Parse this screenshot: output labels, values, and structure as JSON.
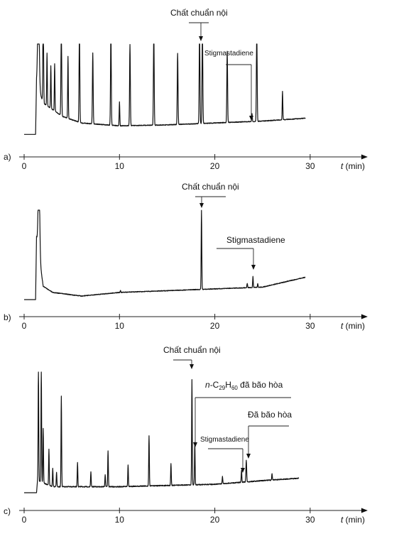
{
  "chart_data": [
    {
      "type": "line",
      "panel_label": "a)",
      "xlabel_italic": "t",
      "xlabel_unit": "(min)",
      "xlim": [
        0,
        35
      ],
      "x_ticks": [
        0,
        10,
        20,
        30
      ],
      "x_tick_labels": [
        "0",
        "10",
        "20",
        "30"
      ],
      "baseline": [
        [
          0,
          0.05
        ],
        [
          1.2,
          0.05
        ],
        [
          1.3,
          0.6
        ],
        [
          2,
          0.38
        ],
        [
          4,
          0.24
        ],
        [
          6,
          0.17
        ],
        [
          10,
          0.14
        ],
        [
          15,
          0.15
        ],
        [
          20,
          0.17
        ],
        [
          25,
          0.19
        ],
        [
          29.5,
          0.22
        ]
      ],
      "peaks": [
        {
          "t": 1.5,
          "h": 1.0,
          "w": 0.25
        },
        {
          "t": 2.0,
          "h": 1.0,
          "w": 0.12
        },
        {
          "t": 2.4,
          "h": 0.55,
          "w": 0.1
        },
        {
          "t": 2.8,
          "h": 0.45,
          "w": 0.1
        },
        {
          "t": 3.2,
          "h": 0.5,
          "w": 0.1
        },
        {
          "t": 3.9,
          "h": 1.0,
          "w": 0.12
        },
        {
          "t": 4.6,
          "h": 0.65,
          "w": 0.1
        },
        {
          "t": 5.8,
          "h": 1.0,
          "w": 0.12
        },
        {
          "t": 7.2,
          "h": 0.75,
          "w": 0.12
        },
        {
          "t": 9.1,
          "h": 1.0,
          "w": 0.12
        },
        {
          "t": 10.0,
          "h": 0.25,
          "w": 0.1
        },
        {
          "t": 11.1,
          "h": 0.85,
          "w": 0.12
        },
        {
          "t": 13.6,
          "h": 1.0,
          "w": 0.12
        },
        {
          "t": 16.1,
          "h": 0.75,
          "w": 0.12
        },
        {
          "t": 18.4,
          "h": 1.0,
          "w": 0.12
        },
        {
          "t": 18.7,
          "h": 1.0,
          "w": 0.12
        },
        {
          "t": 21.3,
          "h": 0.75,
          "w": 0.12
        },
        {
          "t": 23.9,
          "h": 0.08,
          "w": 0.1
        },
        {
          "t": 24.4,
          "h": 1.0,
          "w": 0.12
        },
        {
          "t": 27.1,
          "h": 0.3,
          "w": 0.1
        }
      ],
      "annotations": [
        {
          "text": "Chất chuẩn nội",
          "target_t": 18.5,
          "target_h": 1.05
        },
        {
          "text": "Stigmastadiene",
          "target_t": 23.9,
          "target_h": 0.2,
          "small": true
        }
      ]
    },
    {
      "type": "line",
      "panel_label": "b)",
      "xlabel_italic": "t",
      "xlabel_unit": "(min)",
      "xlim": [
        0,
        35
      ],
      "x_ticks": [
        0,
        10,
        20,
        30
      ],
      "x_tick_labels": [
        "0",
        "10",
        "20",
        "30"
      ],
      "baseline": [
        [
          0,
          0.0
        ],
        [
          1.2,
          0.0
        ],
        [
          1.3,
          0.7
        ],
        [
          2.0,
          0.15
        ],
        [
          3.0,
          0.08
        ],
        [
          6.0,
          0.04
        ],
        [
          10,
          0.08
        ],
        [
          15,
          0.1
        ],
        [
          20,
          0.12
        ],
        [
          25,
          0.14
        ],
        [
          29.5,
          0.25
        ]
      ],
      "peaks": [
        {
          "t": 1.55,
          "h": 0.95,
          "w": 0.25
        },
        {
          "t": 10.1,
          "h": 0.02,
          "w": 0.1
        },
        {
          "t": 18.6,
          "h": 0.88,
          "w": 0.1
        },
        {
          "t": 23.4,
          "h": 0.05,
          "w": 0.1
        },
        {
          "t": 24.0,
          "h": 0.12,
          "w": 0.1
        },
        {
          "t": 24.5,
          "h": 0.04,
          "w": 0.1
        }
      ],
      "annotations": [
        {
          "text": "Chất chuẩn nội",
          "target_t": 18.6,
          "target_h": 1.02
        },
        {
          "text": "Stigmastadiene",
          "target_t": 24.0,
          "target_h": 0.28
        }
      ]
    },
    {
      "type": "line",
      "panel_label": "c)",
      "xlabel_italic": "t",
      "xlabel_unit": "(min)",
      "xlim": [
        0,
        35
      ],
      "x_ticks": [
        0,
        10,
        20,
        30
      ],
      "x_tick_labels": [
        "0",
        "10",
        "20",
        "30"
      ],
      "baseline": [
        [
          0,
          0.0
        ],
        [
          1.3,
          0.0
        ],
        [
          1.4,
          0.1
        ],
        [
          3,
          0.05
        ],
        [
          10,
          0.05
        ],
        [
          15,
          0.06
        ],
        [
          20,
          0.07
        ],
        [
          25,
          0.1
        ],
        [
          28.8,
          0.12
        ]
      ],
      "peaks": [
        {
          "t": 1.5,
          "h": 0.95,
          "w": 0.1
        },
        {
          "t": 1.8,
          "h": 0.95,
          "w": 0.1
        },
        {
          "t": 2.0,
          "h": 0.45,
          "w": 0.1
        },
        {
          "t": 2.6,
          "h": 0.3,
          "w": 0.1
        },
        {
          "t": 3.0,
          "h": 0.15,
          "w": 0.1
        },
        {
          "t": 3.4,
          "h": 0.12,
          "w": 0.1
        },
        {
          "t": 3.9,
          "h": 0.75,
          "w": 0.1
        },
        {
          "t": 5.6,
          "h": 0.2,
          "w": 0.1
        },
        {
          "t": 7.0,
          "h": 0.12,
          "w": 0.1
        },
        {
          "t": 8.5,
          "h": 0.1,
          "w": 0.1
        },
        {
          "t": 8.8,
          "h": 0.3,
          "w": 0.1
        },
        {
          "t": 10.9,
          "h": 0.18,
          "w": 0.1
        },
        {
          "t": 13.1,
          "h": 0.42,
          "w": 0.1
        },
        {
          "t": 15.4,
          "h": 0.18,
          "w": 0.1
        },
        {
          "t": 17.6,
          "h": 0.87,
          "w": 0.1
        },
        {
          "t": 17.9,
          "h": 0.35,
          "w": 0.1
        },
        {
          "t": 20.8,
          "h": 0.06,
          "w": 0.1
        },
        {
          "t": 22.8,
          "h": 0.1,
          "w": 0.1
        },
        {
          "t": 23.3,
          "h": 0.18,
          "w": 0.12
        },
        {
          "t": 26.0,
          "h": 0.05,
          "w": 0.1
        }
      ],
      "annotations": [
        {
          "text": "Chất chuẩn nội",
          "target_t": 17.6,
          "target_h": 1.0
        },
        {
          "text_prefix": "n",
          "text_main": "-C",
          "text_sub1": "29",
          "text_mid": "H",
          "text_sub2": "60",
          "text_suffix": " đã bão hòa",
          "target_t": 17.9,
          "target_h": 0.5
        },
        {
          "text": "Đã bão hòa",
          "target_t": 23.3,
          "target_h": 0.3
        },
        {
          "text": "Stigmastadiene",
          "target_t": 22.8,
          "target_h": 0.2,
          "small": true
        }
      ]
    }
  ]
}
